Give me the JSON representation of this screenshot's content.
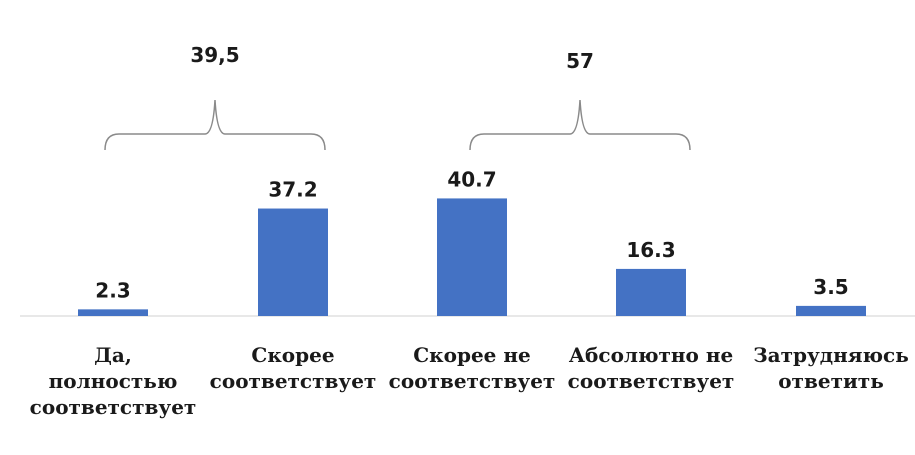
{
  "chart_data": {
    "type": "bar",
    "categories": [
      [
        "Да,",
        "полностью",
        "соответствует"
      ],
      [
        "Скорее",
        "соответствует"
      ],
      [
        "Скорее не",
        "соответствует"
      ],
      [
        "Абсолютно не",
        "соответствует"
      ],
      [
        "Затрудняюсь",
        "ответить"
      ]
    ],
    "values": [
      2.3,
      37.2,
      40.7,
      16.3,
      3.5
    ],
    "data_labels": [
      "2.3",
      "37.2",
      "40.7",
      "16.3",
      "3.5"
    ],
    "ylim": [
      0,
      45
    ],
    "bar_color": "#4472c4",
    "grid": false,
    "legend": "none",
    "group_annotations": [
      {
        "label": "39,5",
        "from_index": 0,
        "to_index": 1
      },
      {
        "label": "57",
        "from_index": 2,
        "to_index": 3
      }
    ]
  }
}
